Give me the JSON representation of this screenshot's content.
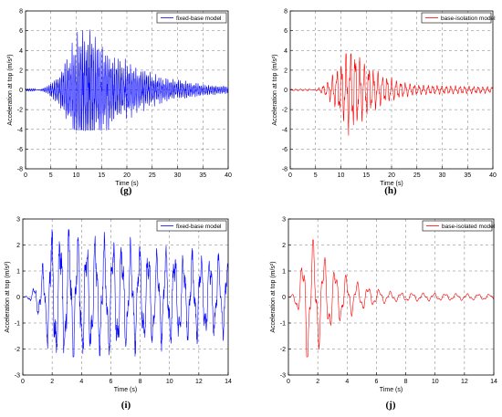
{
  "chart_data": [
    {
      "panel": "(g)",
      "type": "line",
      "xlabel": "Time (s)",
      "ylabel": "Acceleration at top (m/s²)",
      "xlim": [
        0,
        40
      ],
      "ylim": [
        -8,
        8
      ],
      "xticks": [
        0,
        5,
        10,
        15,
        20,
        25,
        30,
        35,
        40
      ],
      "yticks": [
        -8,
        -6,
        -4,
        -2,
        0,
        2,
        4,
        6,
        8
      ],
      "grid": true,
      "grid_style": "dashed",
      "legend": "top-right",
      "series": [
        {
          "name": "fixed-base model",
          "color": "#0000ff",
          "signal": {
            "peak_time": 11,
            "rise": 4,
            "decay": 10,
            "period": 0.35,
            "amplitude": 4.5,
            "noise_amp": 1.6,
            "onset": 2,
            "duration": 40,
            "peak_max": 6.1,
            "peak_min": -4.1
          }
        }
      ]
    },
    {
      "panel": "(h)",
      "type": "line",
      "xlabel": "Time (s)",
      "ylabel": "Acceleration at top (m/s²)",
      "xlim": [
        0,
        40
      ],
      "ylim": [
        -8,
        8
      ],
      "xticks": [
        0,
        5,
        10,
        15,
        20,
        25,
        30,
        35,
        40
      ],
      "yticks": [
        -8,
        -6,
        -4,
        -2,
        0,
        2,
        4,
        6,
        8
      ],
      "grid": true,
      "grid_style": "dashed",
      "legend": "top-right",
      "series": [
        {
          "name": "base-isolation model",
          "color": "#ff0000",
          "signal": {
            "peak_time": 11.7,
            "rise": 3,
            "decay": 6,
            "period": 0.9,
            "amplitude": 3.4,
            "noise_amp": 0.5,
            "onset": 4,
            "duration": 40,
            "tail": 0.45,
            "peak_max": 3.7,
            "peak_min": -5.2
          }
        }
      ]
    },
    {
      "panel": "(i)",
      "type": "line",
      "xlabel": "Time (s)",
      "ylabel": "Acceleration at top (m/s²)",
      "xlim": [
        0,
        14
      ],
      "ylim": [
        -3,
        3
      ],
      "xticks": [
        0,
        2,
        4,
        6,
        8,
        10,
        12,
        14
      ],
      "yticks": [
        -3,
        -2,
        -1,
        0,
        1,
        2,
        3
      ],
      "grid": true,
      "grid_style": "dashed",
      "legend": "top-right",
      "series": [
        {
          "name": "fixed-base model",
          "color": "#0000ff",
          "signal": {
            "peak_time": 2,
            "rise": 1.2,
            "decay": 20,
            "period": 0.6,
            "amplitude": 2.0,
            "noise_amp": 0.45,
            "onset": 0,
            "duration": 14,
            "tail": 1.0,
            "peak_max": 2.6,
            "peak_min": -2.3
          }
        }
      ]
    },
    {
      "panel": "(j)",
      "type": "line",
      "xlabel": "Time (s)",
      "ylabel": "Acceleration at top (m/s²)",
      "xlim": [
        0,
        14
      ],
      "ylim": [
        -3,
        3
      ],
      "xticks": [
        0,
        2,
        4,
        6,
        8,
        10,
        12,
        14
      ],
      "yticks": [
        -3,
        -2,
        -1,
        0,
        1,
        2,
        3
      ],
      "grid": true,
      "grid_style": "dashed",
      "legend": "top-right",
      "series": [
        {
          "name": "base-isolated model",
          "color": "#ff0000",
          "signal": {
            "peak_time": 1.3,
            "rise": 0.8,
            "decay": 2.2,
            "period": 0.75,
            "amplitude": 2.1,
            "noise_amp": 0.15,
            "onset": 0,
            "duration": 14,
            "tail": 0.3,
            "peak_max": 2.2,
            "peak_min": -2.3
          }
        }
      ]
    }
  ]
}
